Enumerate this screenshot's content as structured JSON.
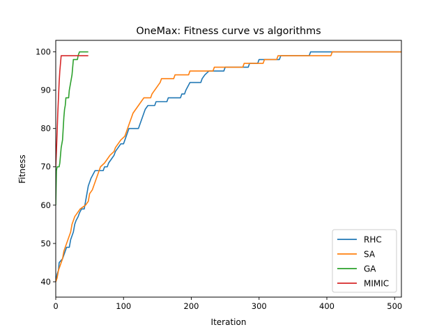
{
  "chart_data": {
    "type": "line",
    "title": "OneMax: Fitness curve vs algorithms",
    "xlabel": "Iteration",
    "ylabel": "Fitness",
    "xlim": [
      0,
      510
    ],
    "ylim": [
      36,
      103
    ],
    "xticks": [
      0,
      100,
      200,
      300,
      400,
      500
    ],
    "yticks": [
      40,
      50,
      60,
      70,
      80,
      90,
      100
    ],
    "grid": false,
    "legend_position": "lower-right",
    "series": [
      {
        "name": "RHC",
        "color": "#1f77b4",
        "points": [
          [
            0,
            40
          ],
          [
            2,
            42
          ],
          [
            4,
            43
          ],
          [
            5,
            45
          ],
          [
            10,
            46
          ],
          [
            14,
            48
          ],
          [
            16,
            49
          ],
          [
            20,
            49
          ],
          [
            22,
            51
          ],
          [
            24,
            52
          ],
          [
            26,
            53
          ],
          [
            28,
            55
          ],
          [
            30,
            56
          ],
          [
            33,
            57
          ],
          [
            35,
            58
          ],
          [
            38,
            59
          ],
          [
            42,
            59
          ],
          [
            44,
            61
          ],
          [
            46,
            63
          ],
          [
            48,
            65
          ],
          [
            50,
            66
          ],
          [
            52,
            67
          ],
          [
            55,
            68
          ],
          [
            58,
            69
          ],
          [
            70,
            69
          ],
          [
            72,
            70
          ],
          [
            76,
            70
          ],
          [
            78,
            71
          ],
          [
            82,
            72
          ],
          [
            86,
            73
          ],
          [
            88,
            74
          ],
          [
            92,
            75
          ],
          [
            96,
            76
          ],
          [
            100,
            76
          ],
          [
            104,
            78
          ],
          [
            108,
            80
          ],
          [
            122,
            80
          ],
          [
            124,
            81
          ],
          [
            126,
            82
          ],
          [
            128,
            83
          ],
          [
            130,
            84
          ],
          [
            132,
            85
          ],
          [
            136,
            86
          ],
          [
            146,
            86
          ],
          [
            148,
            87
          ],
          [
            164,
            87
          ],
          [
            166,
            88
          ],
          [
            184,
            88
          ],
          [
            186,
            89
          ],
          [
            190,
            89
          ],
          [
            192,
            90
          ],
          [
            198,
            92
          ],
          [
            214,
            92
          ],
          [
            216,
            93
          ],
          [
            220,
            94
          ],
          [
            226,
            95
          ],
          [
            248,
            95
          ],
          [
            250,
            96
          ],
          [
            284,
            96
          ],
          [
            286,
            97
          ],
          [
            298,
            97
          ],
          [
            300,
            98
          ],
          [
            330,
            98
          ],
          [
            332,
            99
          ],
          [
            374,
            99
          ],
          [
            376,
            100
          ],
          [
            510,
            100
          ]
        ]
      },
      {
        "name": "SA",
        "color": "#ff7f0e",
        "points": [
          [
            0,
            40
          ],
          [
            2,
            41
          ],
          [
            4,
            43
          ],
          [
            6,
            44
          ],
          [
            8,
            45
          ],
          [
            10,
            46
          ],
          [
            12,
            48
          ],
          [
            14,
            49
          ],
          [
            16,
            50
          ],
          [
            18,
            51
          ],
          [
            20,
            52
          ],
          [
            22,
            53
          ],
          [
            24,
            55
          ],
          [
            26,
            56
          ],
          [
            28,
            57
          ],
          [
            32,
            58
          ],
          [
            36,
            59
          ],
          [
            44,
            60
          ],
          [
            48,
            61
          ],
          [
            50,
            63
          ],
          [
            54,
            64
          ],
          [
            56,
            65
          ],
          [
            58,
            66
          ],
          [
            62,
            68
          ],
          [
            66,
            70
          ],
          [
            72,
            71
          ],
          [
            76,
            72
          ],
          [
            80,
            73
          ],
          [
            86,
            74
          ],
          [
            88,
            75
          ],
          [
            92,
            76
          ],
          [
            96,
            77
          ],
          [
            102,
            78
          ],
          [
            106,
            80
          ],
          [
            110,
            82
          ],
          [
            114,
            84
          ],
          [
            118,
            85
          ],
          [
            122,
            86
          ],
          [
            126,
            87
          ],
          [
            130,
            88
          ],
          [
            140,
            88
          ],
          [
            142,
            89
          ],
          [
            146,
            90
          ],
          [
            150,
            91
          ],
          [
            154,
            92
          ],
          [
            156,
            93
          ],
          [
            174,
            93
          ],
          [
            176,
            94
          ],
          [
            196,
            94
          ],
          [
            198,
            95
          ],
          [
            232,
            95
          ],
          [
            234,
            96
          ],
          [
            276,
            96
          ],
          [
            278,
            97
          ],
          [
            306,
            97
          ],
          [
            308,
            98
          ],
          [
            326,
            98
          ],
          [
            328,
            99
          ],
          [
            406,
            99
          ],
          [
            408,
            100
          ],
          [
            510,
            100
          ]
        ]
      },
      {
        "name": "GA",
        "color": "#2ca02c",
        "points": [
          [
            0,
            60
          ],
          [
            1,
            69
          ],
          [
            2,
            70
          ],
          [
            5,
            70
          ],
          [
            6,
            71
          ],
          [
            7,
            73
          ],
          [
            8,
            75
          ],
          [
            9,
            76
          ],
          [
            10,
            77
          ],
          [
            11,
            80
          ],
          [
            12,
            83
          ],
          [
            13,
            85
          ],
          [
            14,
            86
          ],
          [
            15,
            88
          ],
          [
            19,
            88
          ],
          [
            20,
            90
          ],
          [
            22,
            92
          ],
          [
            24,
            94
          ],
          [
            25,
            96
          ],
          [
            26,
            98
          ],
          [
            32,
            98
          ],
          [
            33,
            99
          ],
          [
            35,
            100
          ],
          [
            48,
            100
          ]
        ]
      },
      {
        "name": "MIMIC",
        "color": "#d62728",
        "points": [
          [
            0,
            70
          ],
          [
            1,
            74
          ],
          [
            2,
            79
          ],
          [
            3,
            84
          ],
          [
            4,
            88
          ],
          [
            5,
            92
          ],
          [
            6,
            95
          ],
          [
            7,
            97
          ],
          [
            8,
            99
          ],
          [
            48,
            99
          ]
        ]
      }
    ]
  }
}
